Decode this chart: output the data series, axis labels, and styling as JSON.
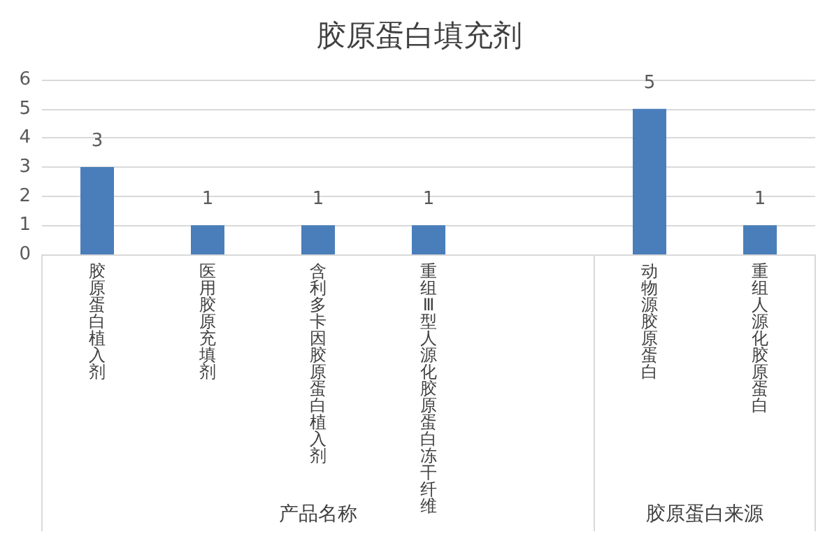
{
  "chart_data": {
    "type": "bar",
    "title": "胶原蛋白填充剂",
    "categories": [
      "胶原蛋白植入剂",
      "医用胶原充填剂",
      "含利多卡因胶原蛋白植入剂",
      "重组Ⅲ型人源化胶原蛋白冻干纤维",
      null,
      "动物源胶原蛋白",
      "重组人源化胶原蛋白"
    ],
    "values": [
      3,
      1,
      1,
      1,
      null,
      5,
      1
    ],
    "color": "#4a7ebb",
    "ylim": [
      0,
      6
    ],
    "yticks": [
      0,
      1,
      2,
      3,
      4,
      5,
      6
    ],
    "grid": "y",
    "data_labels": true,
    "annotations": [
      "产品名称",
      "胶原蛋白来源"
    ]
  }
}
